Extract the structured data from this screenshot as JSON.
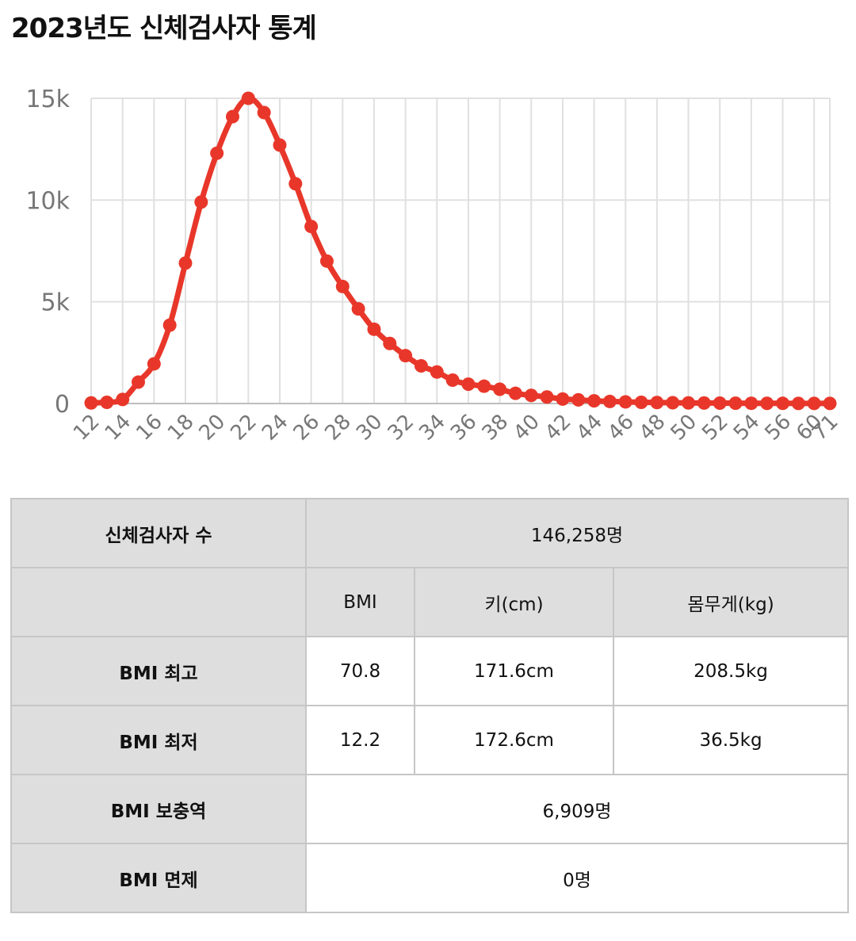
{
  "title": "2023년도 신체검사자 통계",
  "chart_data": {
    "type": "line",
    "title": "",
    "xlabel": "",
    "ylabel": "",
    "line_color": "#e8372a",
    "ylim": [
      0,
      15000
    ],
    "yticks": [
      "0",
      "5k",
      "10k",
      "15k"
    ],
    "x": [
      "12",
      "13",
      "14",
      "15",
      "16",
      "17",
      "18",
      "19",
      "20",
      "21",
      "22",
      "23",
      "24",
      "25",
      "26",
      "27",
      "28",
      "29",
      "30",
      "31",
      "32",
      "33",
      "34",
      "35",
      "36",
      "37",
      "38",
      "39",
      "40",
      "41",
      "42",
      "43",
      "44",
      "45",
      "46",
      "47",
      "48",
      "49",
      "50",
      "51",
      "52",
      "53",
      "54",
      "55",
      "56",
      "57",
      "60",
      "71"
    ],
    "xtick_labels": [
      "12",
      "14",
      "16",
      "18",
      "20",
      "22",
      "24",
      "26",
      "28",
      "30",
      "32",
      "34",
      "36",
      "38",
      "40",
      "42",
      "44",
      "46",
      "48",
      "50",
      "52",
      "54",
      "56",
      "60",
      "71"
    ],
    "values": [
      30,
      60,
      200,
      1050,
      1950,
      3850,
      6900,
      9900,
      12300,
      14100,
      15000,
      14300,
      12700,
      10800,
      8700,
      7000,
      5750,
      4650,
      3650,
      2950,
      2350,
      1850,
      1550,
      1150,
      950,
      850,
      700,
      500,
      400,
      320,
      220,
      180,
      130,
      100,
      80,
      60,
      50,
      40,
      30,
      25,
      20,
      15,
      12,
      10,
      8,
      6,
      5,
      4
    ]
  },
  "table": {
    "count_label": "신체검사자 수",
    "count_value": "146,258명",
    "col_headers": [
      "BMI",
      "키(cm)",
      "몸무게(kg)"
    ],
    "rows": [
      {
        "label": "BMI 최고",
        "bmi": "70.8",
        "height": "171.6cm",
        "weight": "208.5kg"
      },
      {
        "label": "BMI 최저",
        "bmi": "12.2",
        "height": "172.6cm",
        "weight": "36.5kg"
      }
    ],
    "supplement_label": "BMI 보충역",
    "supplement_value": "6,909명",
    "exempt_label": "BMI 면제",
    "exempt_value": "0명"
  }
}
